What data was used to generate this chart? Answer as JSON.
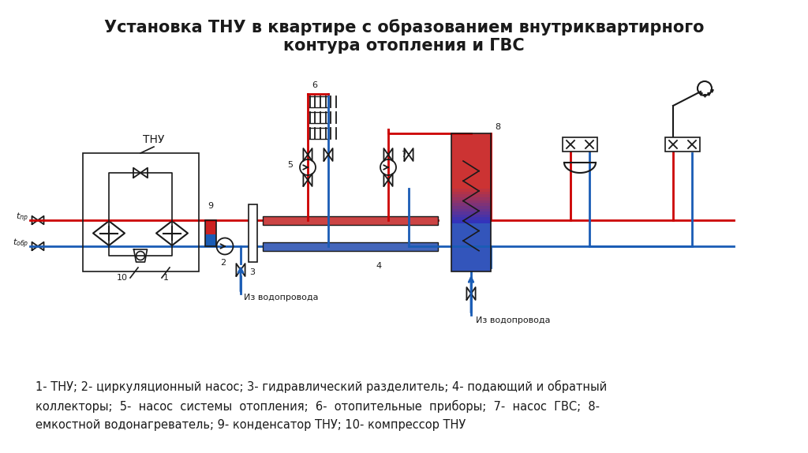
{
  "title": "Установка ТНУ в квартире с образованием внутриквартирного\nконтура отопления и ГВС",
  "title_fontsize": 15,
  "caption": "1- ТНУ; 2- циркуляционный насос; 3- гидравлический разделитель; 4- подающий и обратный\nколлекторы;  5-  насос  системы  отопления;  6-  отопительные  приборы;  7-  насос  ГВС;  8-\nемкостной водонагреватель; 9- конденсатор ТНУ; 10- компрессор ТНУ",
  "caption_fontsize": 10.5,
  "bg_color": "#ffffff",
  "red_pipe": "#cc0000",
  "blue_pipe": "#1a5cb5",
  "black": "#1a1a1a",
  "lw_pipe": 2.0,
  "lw_thin": 1.2
}
